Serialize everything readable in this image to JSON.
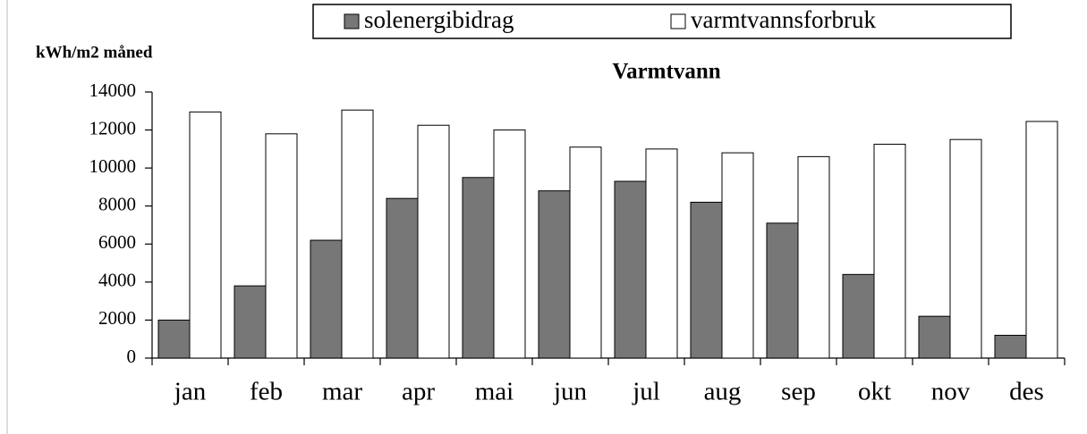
{
  "chart_data": {
    "type": "bar",
    "title": "Varmtvann",
    "y_label": "kWh/m2 måned",
    "categories": [
      "jan",
      "feb",
      "mar",
      "apr",
      "mai",
      "jun",
      "jul",
      "aug",
      "sep",
      "okt",
      "nov",
      "des"
    ],
    "series": [
      {
        "name": "solenergibidrag",
        "color": "#777777",
        "values": [
          2000,
          3800,
          6200,
          8400,
          9500,
          8800,
          9300,
          8200,
          7100,
          4400,
          2200,
          1200
        ]
      },
      {
        "name": "varmtvannsforbruk",
        "color": "#ffffff",
        "values": [
          12950,
          11800,
          13050,
          12250,
          12000,
          11100,
          11000,
          10800,
          10600,
          11250,
          11500,
          12450
        ]
      }
    ],
    "ylim": [
      0,
      14000
    ],
    "yticks": [
      0,
      2000,
      4000,
      6000,
      8000,
      10000,
      12000,
      14000
    ],
    "grid": false,
    "legend": "top"
  }
}
